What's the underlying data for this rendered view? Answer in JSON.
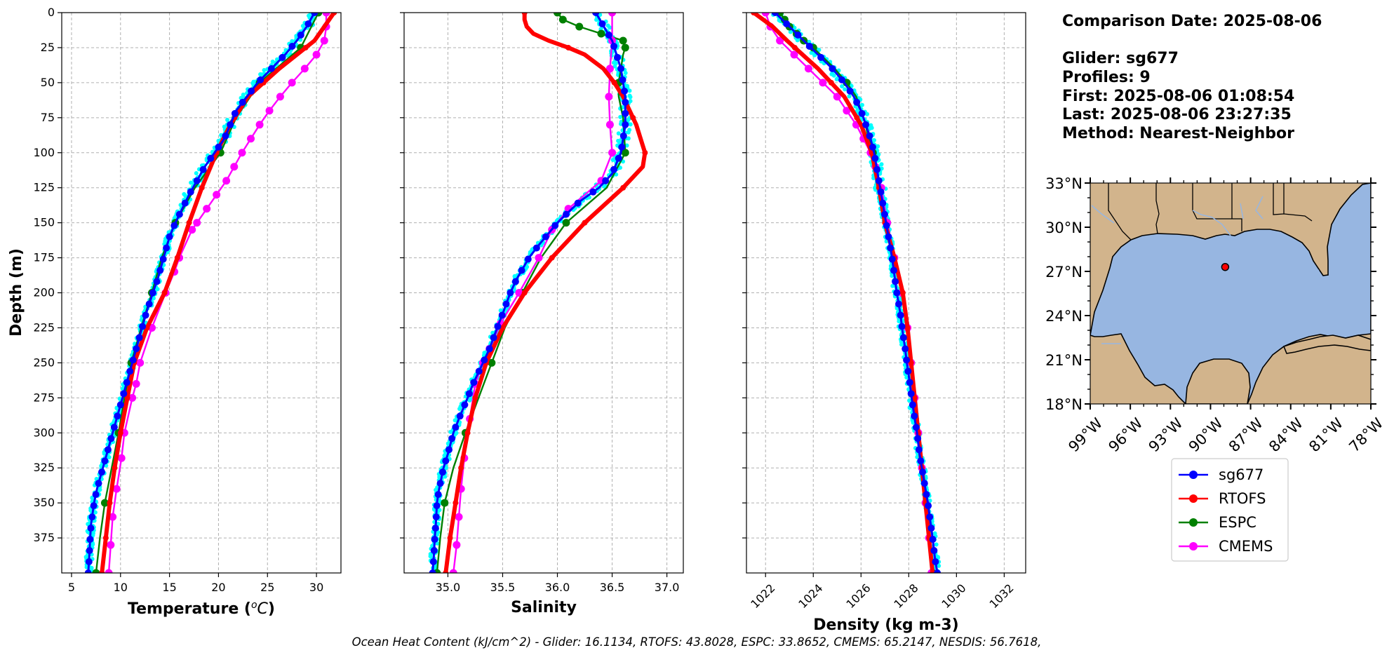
{
  "chart_data": [
    {
      "type": "line",
      "panel": "temperature",
      "xlabel": "Temperature (°C)",
      "ylabel": "Depth (m)",
      "xlim": [
        4,
        32.5
      ],
      "ylim": [
        400,
        0
      ],
      "xticks": [
        5,
        10,
        15,
        20,
        25,
        30
      ],
      "yticks": [
        0,
        25,
        50,
        75,
        100,
        125,
        150,
        175,
        200,
        225,
        250,
        275,
        300,
        325,
        350,
        375
      ],
      "grid": true,
      "series": [
        {
          "name": "sg677",
          "color": "#0000ff",
          "depth": [
            0,
            10,
            20,
            30,
            40,
            50,
            60,
            70,
            80,
            90,
            100,
            110,
            120,
            130,
            140,
            150,
            160,
            175,
            190,
            200,
            215,
            225,
            240,
            250,
            265,
            275,
            290,
            300,
            315,
            325,
            340,
            350,
            365,
            375,
            390,
            400
          ],
          "values": [
            29.8,
            29.0,
            28.0,
            26.8,
            25.4,
            24.0,
            22.9,
            21.8,
            21.2,
            20.6,
            19.6,
            18.6,
            17.8,
            17.0,
            16.3,
            15.6,
            15.0,
            14.4,
            13.8,
            13.3,
            12.6,
            12.2,
            11.6,
            11.2,
            10.6,
            10.2,
            9.6,
            9.2,
            8.6,
            8.2,
            7.6,
            7.3,
            7.0,
            6.9,
            6.8,
            6.7
          ]
        },
        {
          "name": "RTOFS",
          "color": "#ff0000",
          "depth": [
            0,
            20,
            40,
            60,
            80,
            100,
            125,
            150,
            175,
            200,
            225,
            250,
            275,
            300,
            325,
            350,
            375,
            400
          ],
          "values": [
            31.8,
            29.8,
            26.2,
            23.0,
            21.2,
            19.8,
            18.3,
            17.0,
            15.8,
            14.5,
            12.7,
            11.4,
            10.7,
            10.0,
            9.4,
            8.9,
            8.5,
            8.1
          ]
        },
        {
          "name": "ESPC",
          "color": "#008000",
          "depth": [
            0,
            25,
            50,
            75,
            100,
            125,
            150,
            175,
            200,
            225,
            250,
            275,
            300,
            325,
            350,
            375,
            400
          ],
          "values": [
            30.2,
            28.4,
            24.2,
            21.8,
            20.2,
            17.6,
            15.6,
            14.2,
            13.2,
            12.1,
            11.1,
            10.4,
            9.8,
            9.1,
            8.4,
            7.9,
            7.5
          ]
        },
        {
          "name": "CMEMS",
          "color": "#ff00ff",
          "depth": [
            0,
            10,
            20,
            30,
            40,
            50,
            60,
            70,
            80,
            90,
            100,
            110,
            120,
            130,
            140,
            150,
            155,
            175,
            185,
            200,
            225,
            250,
            265,
            275,
            300,
            318,
            340,
            360,
            380,
            400
          ],
          "values": [
            31.0,
            31.0,
            30.8,
            30.0,
            28.8,
            27.5,
            26.3,
            25.2,
            24.2,
            23.3,
            22.4,
            21.6,
            20.8,
            19.8,
            18.8,
            17.8,
            17.3,
            16.0,
            15.5,
            14.6,
            13.2,
            12.0,
            11.6,
            11.2,
            10.4,
            10.1,
            9.6,
            9.2,
            9.0,
            8.8
          ]
        }
      ]
    },
    {
      "type": "line",
      "panel": "salinity",
      "xlabel": "Salinity",
      "ylabel": "",
      "xlim": [
        34.6,
        37.15
      ],
      "ylim": [
        400,
        0
      ],
      "xticks": [
        35.0,
        35.5,
        36.0,
        36.5,
        37.0
      ],
      "xtick_labels": [
        "35.0",
        "35.5",
        "36.0",
        "36.5",
        "37.0"
      ],
      "grid": true,
      "series": [
        {
          "name": "sg677",
          "color": "#0000ff",
          "depth": [
            0,
            20,
            40,
            60,
            80,
            100,
            115,
            125,
            135,
            150,
            165,
            175,
            190,
            200,
            215,
            225,
            240,
            250,
            265,
            275,
            290,
            300,
            315,
            325,
            340,
            350,
            365,
            375,
            390,
            400
          ],
          "values": [
            36.35,
            36.5,
            36.58,
            36.62,
            36.62,
            36.58,
            36.5,
            36.38,
            36.2,
            36.0,
            35.84,
            35.74,
            35.63,
            35.57,
            35.5,
            35.45,
            35.38,
            35.32,
            35.23,
            35.18,
            35.1,
            35.05,
            35.0,
            34.96,
            34.92,
            34.9,
            34.89,
            34.88,
            34.87,
            34.86
          ]
        },
        {
          "name": "RTOFS",
          "color": "#ff0000",
          "depth": [
            0,
            5,
            10,
            15,
            20,
            25,
            30,
            40,
            50,
            60,
            70,
            80,
            90,
            100,
            110,
            125,
            150,
            175,
            200,
            225,
            250,
            275,
            300,
            325,
            350,
            375,
            400
          ],
          "values": [
            35.7,
            35.7,
            35.72,
            35.78,
            35.92,
            36.1,
            36.25,
            36.42,
            36.52,
            36.6,
            36.66,
            36.72,
            36.76,
            36.8,
            36.78,
            36.6,
            36.25,
            35.95,
            35.7,
            35.5,
            35.35,
            35.25,
            35.18,
            35.12,
            35.07,
            35.02,
            34.98
          ]
        },
        {
          "name": "ESPC",
          "color": "#008000",
          "depth": [
            0,
            5,
            10,
            15,
            20,
            25,
            30,
            40,
            50,
            60,
            75,
            100,
            125,
            150,
            175,
            200,
            225,
            250,
            275,
            300,
            325,
            350,
            375,
            400
          ],
          "values": [
            36.0,
            36.05,
            36.2,
            36.4,
            36.6,
            36.62,
            36.6,
            36.58,
            36.56,
            36.56,
            36.6,
            36.62,
            36.45,
            36.08,
            35.85,
            35.68,
            35.52,
            35.4,
            35.28,
            35.16,
            35.05,
            34.97,
            34.93,
            34.9
          ]
        },
        {
          "name": "CMEMS",
          "color": "#ff00ff",
          "depth": [
            0,
            20,
            40,
            60,
            80,
            100,
            120,
            140,
            155,
            175,
            200,
            222,
            240,
            250,
            265,
            290,
            318,
            340,
            360,
            380,
            400
          ],
          "values": [
            36.5,
            36.5,
            36.48,
            36.47,
            36.48,
            36.5,
            36.4,
            36.1,
            35.95,
            35.83,
            35.65,
            35.48,
            35.38,
            35.32,
            35.25,
            35.2,
            35.15,
            35.12,
            35.1,
            35.08,
            35.05
          ]
        }
      ]
    },
    {
      "type": "line",
      "panel": "density",
      "xlabel": "Density (kg m-3)",
      "ylabel": "",
      "xlim": [
        1021.2,
        1032.9
      ],
      "ylim": [
        400,
        0
      ],
      "xticks": [
        1022,
        1024,
        1026,
        1028,
        1030,
        1032
      ],
      "grid": true,
      "series": [
        {
          "name": "sg677",
          "color": "#0000ff",
          "depth": [
            0,
            10,
            20,
            30,
            40,
            50,
            60,
            70,
            80,
            90,
            100,
            110,
            120,
            130,
            140,
            150,
            160,
            175,
            190,
            200,
            215,
            225,
            240,
            250,
            265,
            275,
            290,
            300,
            315,
            325,
            340,
            350,
            365,
            375,
            390,
            400
          ],
          "values": [
            1022.4,
            1023.0,
            1023.6,
            1024.2,
            1024.8,
            1025.3,
            1025.7,
            1026.0,
            1026.2,
            1026.4,
            1026.55,
            1026.65,
            1026.75,
            1026.85,
            1026.95,
            1027.05,
            1027.15,
            1027.3,
            1027.42,
            1027.5,
            1027.65,
            1027.72,
            1027.85,
            1027.92,
            1028.05,
            1028.12,
            1028.25,
            1028.35,
            1028.45,
            1028.55,
            1028.7,
            1028.8,
            1028.92,
            1029.0,
            1029.1,
            1029.2
          ]
        },
        {
          "name": "RTOFS",
          "color": "#ff0000",
          "depth": [
            0,
            10,
            20,
            40,
            60,
            80,
            100,
            125,
            150,
            175,
            200,
            225,
            250,
            275,
            300,
            325,
            350,
            375,
            400
          ],
          "values": [
            1021.5,
            1022.3,
            1022.9,
            1024.2,
            1025.3,
            1026.0,
            1026.45,
            1026.75,
            1027.0,
            1027.4,
            1027.75,
            1027.95,
            1028.1,
            1028.25,
            1028.4,
            1028.55,
            1028.7,
            1028.85,
            1029.0
          ]
        },
        {
          "name": "ESPC",
          "color": "#008000",
          "depth": [
            0,
            5,
            10,
            15,
            20,
            25,
            30,
            40,
            50,
            60,
            75,
            100,
            125,
            150,
            175,
            200,
            225,
            250,
            275,
            300,
            325,
            350,
            375,
            400
          ],
          "values": [
            1022.6,
            1022.8,
            1023.0,
            1023.3,
            1023.6,
            1024.0,
            1024.3,
            1024.9,
            1025.4,
            1025.8,
            1026.1,
            1026.5,
            1026.8,
            1027.1,
            1027.4,
            1027.7,
            1027.95,
            1028.1,
            1028.25,
            1028.4,
            1028.55,
            1028.7,
            1028.85,
            1029.0
          ]
        },
        {
          "name": "CMEMS",
          "color": "#ff00ff",
          "depth": [
            0,
            10,
            20,
            30,
            40,
            50,
            60,
            70,
            80,
            90,
            100,
            110,
            125,
            150,
            175,
            200,
            225,
            250,
            275,
            300,
            325,
            350,
            375,
            400
          ],
          "values": [
            1022.0,
            1022.2,
            1022.6,
            1023.2,
            1023.8,
            1024.4,
            1025.0,
            1025.4,
            1025.8,
            1026.1,
            1026.4,
            1026.6,
            1026.85,
            1027.1,
            1027.4,
            1027.7,
            1027.95,
            1028.1,
            1028.25,
            1028.4,
            1028.55,
            1028.7,
            1028.85,
            1028.95
          ]
        }
      ]
    },
    {
      "type": "map",
      "panel": "location",
      "lat_range": [
        18,
        33
      ],
      "lon_range": [
        -99,
        -78
      ],
      "lat_ticks": [
        "33°N",
        "30°N",
        "27°N",
        "24°N",
        "21°N",
        "18°N"
      ],
      "lon_ticks": [
        "99°W",
        "96°W",
        "93°W",
        "90°W",
        "87°W",
        "84°W",
        "81°W",
        "78°W"
      ],
      "glider_position": {
        "lat": 27.3,
        "lon": -88.9
      }
    }
  ],
  "info": {
    "comparison_date": "Comparison Date: 2025-08-06",
    "glider": "Glider: sg677",
    "profiles": "Profiles: 9",
    "first": "First: 2025-08-06 01:08:54",
    "last": "Last: 2025-08-06 23:27:35",
    "method": "Method: Nearest-Neighbor"
  },
  "legend": [
    {
      "label": "sg677",
      "color": "#0000ff"
    },
    {
      "label": "RTOFS",
      "color": "#ff0000"
    },
    {
      "label": "ESPC",
      "color": "#008000"
    },
    {
      "label": "CMEMS",
      "color": "#ff00ff"
    }
  ],
  "colors": {
    "raw_glider": "#00ffff",
    "ocean": "#97b6e1",
    "land": "#d2b48c"
  },
  "footer": "Ocean Heat Content (kJ/cm^2) - Glider: 16.1134,  RTOFS: 43.8028,  ESPC: 33.8652,  CMEMS: 65.2147,  NESDIS: 56.7618,"
}
